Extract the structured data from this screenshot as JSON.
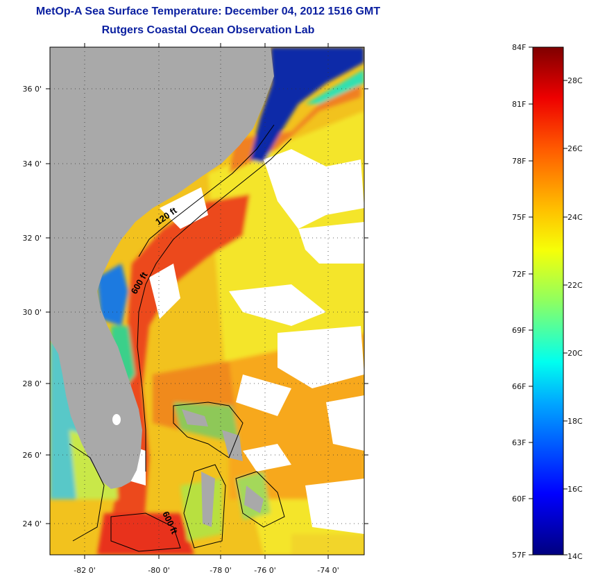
{
  "title": "MetOp-A Sea Surface Temperature:  December 04, 2012 1516 GMT",
  "subtitle": "Rutgers Coastal Ocean Observation Lab",
  "map": {
    "lon_range": [
      -83,
      -73
    ],
    "lat_range": [
      23,
      37
    ],
    "lon_ticks": [
      "-82 0'",
      "-80 0'",
      "-78 0'",
      "-76 0'",
      "-74 0'"
    ],
    "lat_ticks": [
      "36 0'",
      "34 0'",
      "32 0'",
      "30 0'",
      "28 0'",
      "26 0'",
      "24 0'"
    ],
    "contour_labels": [
      "120 ft",
      "600 ft",
      "600 ft"
    ],
    "colors": {
      "land": "#a9a9a9",
      "cloud": "#ffffff",
      "cold": "#0a1fa0",
      "warm": "#e8401a"
    }
  },
  "colorbar": {
    "fahrenheit": [
      "84F",
      "81F",
      "78F",
      "75F",
      "72F",
      "69F",
      "66F",
      "63F",
      "60F",
      "57F"
    ],
    "celsius": [
      "28C",
      "26C",
      "24C",
      "22C",
      "20C",
      "18C",
      "16C",
      "14C"
    ],
    "range_f": [
      57,
      84
    ],
    "range_c": [
      14,
      28.9
    ]
  }
}
